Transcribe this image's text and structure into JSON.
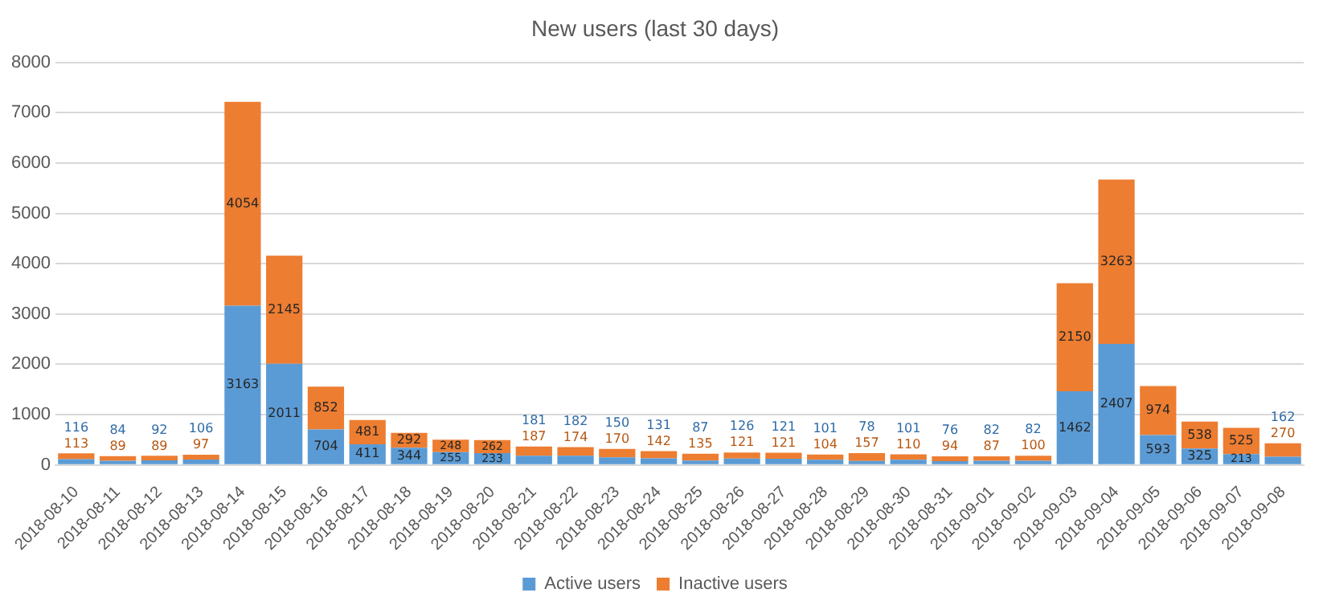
{
  "chart_data": {
    "type": "bar",
    "title": "New users (last 30 days)",
    "stacked": true,
    "data_labels": true,
    "grid": "y",
    "legend": "bottom",
    "categories": [
      "2018-08-10",
      "2018-08-11",
      "2018-08-12",
      "2018-08-13",
      "2018-08-14",
      "2018-08-15",
      "2018-08-16",
      "2018-08-17",
      "2018-08-18",
      "2018-08-19",
      "2018-08-20",
      "2018-08-21",
      "2018-08-22",
      "2018-08-23",
      "2018-08-24",
      "2018-08-25",
      "2018-08-26",
      "2018-08-27",
      "2018-08-28",
      "2018-08-29",
      "2018-08-30",
      "2018-08-31",
      "2018-09-01",
      "2018-09-02",
      "2018-09-03",
      "2018-09-04",
      "2018-09-05",
      "2018-09-06",
      "2018-09-07",
      "2018-09-08"
    ],
    "ylim": [
      0,
      8000
    ],
    "yticks": [
      0,
      1000,
      2000,
      3000,
      4000,
      5000,
      6000,
      7000,
      8000
    ],
    "series": [
      {
        "name": "Active users",
        "color": "#5b9bd5",
        "values": [
          116,
          84,
          92,
          106,
          3163,
          2011,
          704,
          411,
          344,
          255,
          233,
          181,
          182,
          150,
          131,
          87,
          126,
          121,
          101,
          78,
          101,
          76,
          82,
          82,
          1462,
          2407,
          593,
          325,
          213,
          162
        ]
      },
      {
        "name": "Inactive users",
        "color": "#ed7d31",
        "values": [
          113,
          89,
          89,
          97,
          4054,
          2145,
          852,
          481,
          292,
          248,
          262,
          187,
          174,
          170,
          142,
          135,
          121,
          121,
          104,
          157,
          110,
          94,
          87,
          100,
          2150,
          3263,
          974,
          538,
          525,
          270
        ]
      }
    ]
  }
}
